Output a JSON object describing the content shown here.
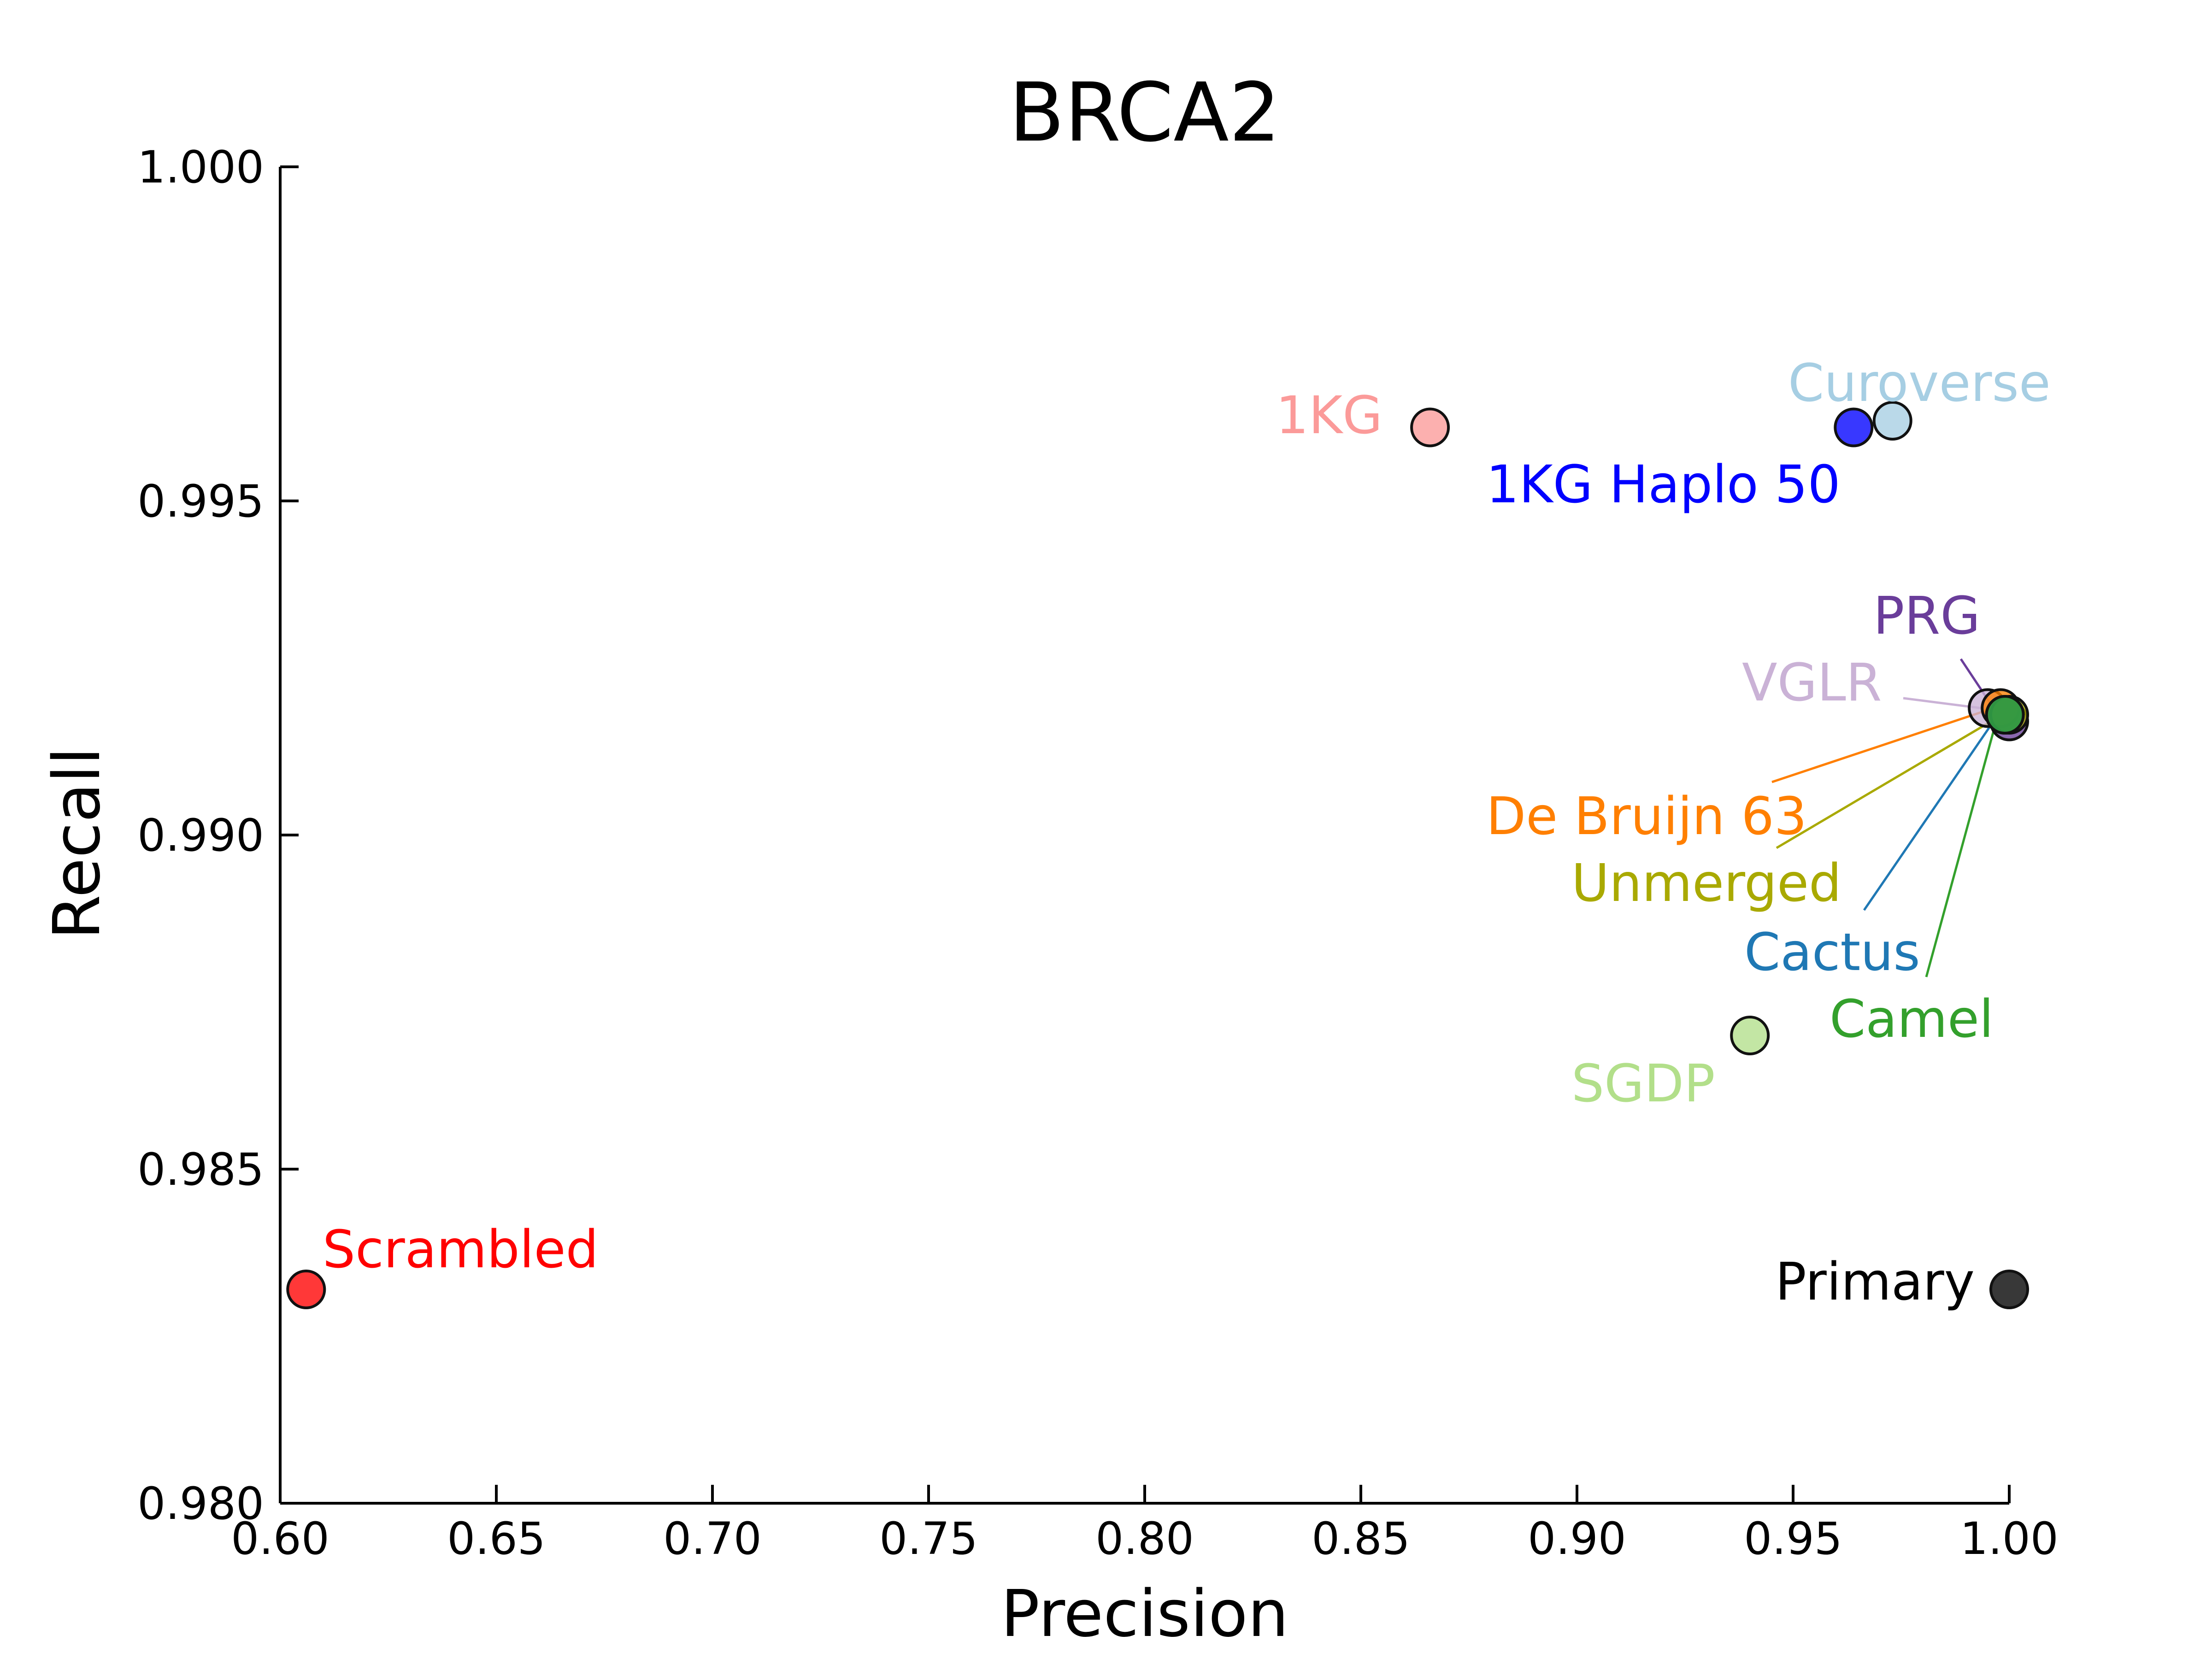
{
  "chart_data": {
    "type": "scatter",
    "title": "BRCA2",
    "xlabel": "Precision",
    "ylabel": "Recall",
    "xlim": [
      0.6,
      1.0
    ],
    "ylim": [
      0.98,
      1.0
    ],
    "xticks": [
      "0.60",
      "0.65",
      "0.70",
      "0.75",
      "0.80",
      "0.85",
      "0.90",
      "0.95",
      "1.00"
    ],
    "yticks": [
      "0.980",
      "0.985",
      "0.990",
      "0.995",
      "1.000"
    ],
    "grid": false,
    "legend": "none",
    "points": [
      {
        "label": "Primary",
        "x": 1.0,
        "y": 0.9832,
        "color": "#000000"
      },
      {
        "label": "Scrambled",
        "x": 0.606,
        "y": 0.9832,
        "color": "#ff0000"
      },
      {
        "label": "1KG",
        "x": 0.866,
        "y": 0.9961,
        "color": "#fb9a99"
      },
      {
        "label": "1KG Haplo 50",
        "x": 0.964,
        "y": 0.9961,
        "color": "#0000ff"
      },
      {
        "label": "Curoverse",
        "x": 0.973,
        "y": 0.9962,
        "color": "#a6cee3"
      },
      {
        "label": "PRG",
        "x": 1.0,
        "y": 0.9917,
        "color": "#6a3d9a"
      },
      {
        "label": "VGLR",
        "x": 0.995,
        "y": 0.9919,
        "color": "#cab2d6"
      },
      {
        "label": "De Bruijn 63",
        "x": 0.998,
        "y": 0.9919,
        "color": "#ff7f00"
      },
      {
        "label": "Unmerged",
        "x": 1.0,
        "y": 0.9918,
        "color": "#a9a900"
      },
      {
        "label": "Cactus",
        "x": 0.999,
        "y": 0.9918,
        "color": "#1f78b4"
      },
      {
        "label": "Camel",
        "x": 0.999,
        "y": 0.9918,
        "color": "#33a02c"
      },
      {
        "label": "SGDP",
        "x": 0.94,
        "y": 0.987,
        "color": "#b2df8a"
      }
    ]
  }
}
